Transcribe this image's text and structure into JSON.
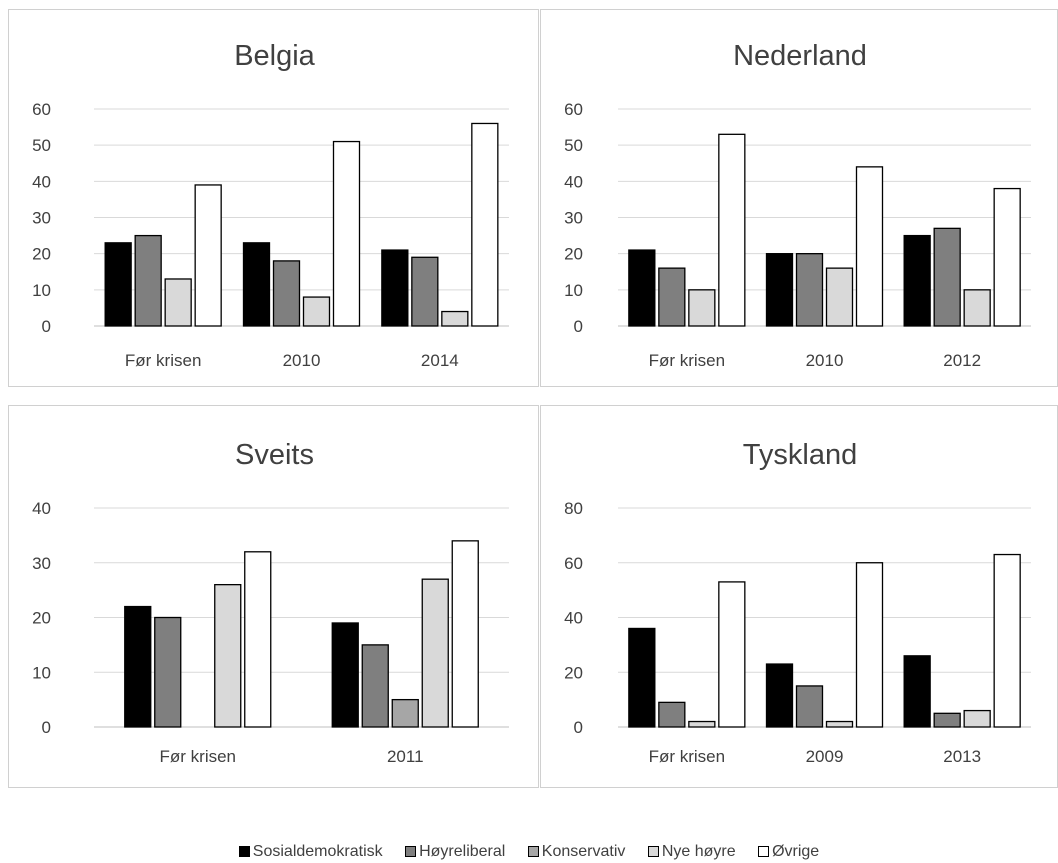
{
  "legend": [
    {
      "label": "Sosialdemokratisk",
      "color": "#000000"
    },
    {
      "label": "Høyreliberal",
      "color": "#7f7f7f"
    },
    {
      "label": "Konservativ",
      "color": "#a6a6a6"
    },
    {
      "label": "Nye høyre",
      "color": "#d9d9d9"
    },
    {
      "label": "Øvrige",
      "color": "#ffffff"
    }
  ],
  "chart_data": [
    {
      "type": "bar",
      "title": "Belgia",
      "categories": [
        "Før krisen",
        "2010",
        "2014"
      ],
      "yticks": [
        0,
        10,
        20,
        30,
        40,
        50,
        60
      ],
      "ylim": [
        0,
        60
      ],
      "grid": true,
      "series": [
        {
          "name": "Sosialdemokratisk",
          "values": [
            23,
            23,
            21
          ]
        },
        {
          "name": "Høyreliberal",
          "values": [
            25,
            18,
            19
          ]
        },
        {
          "name": "Nye høyre",
          "values": [
            13,
            8,
            4
          ]
        },
        {
          "name": "Øvrige",
          "values": [
            39,
            51,
            56
          ]
        }
      ]
    },
    {
      "type": "bar",
      "title": "Nederland",
      "categories": [
        "Før krisen",
        "2010",
        "2012"
      ],
      "yticks": [
        0,
        10,
        20,
        30,
        40,
        50,
        60
      ],
      "ylim": [
        0,
        60
      ],
      "grid": true,
      "series": [
        {
          "name": "Sosialdemokratisk",
          "values": [
            21,
            20,
            25
          ]
        },
        {
          "name": "Høyreliberal",
          "values": [
            16,
            20,
            27
          ]
        },
        {
          "name": "Nye høyre",
          "values": [
            10,
            16,
            10
          ]
        },
        {
          "name": "Øvrige",
          "values": [
            53,
            44,
            38
          ]
        }
      ]
    },
    {
      "type": "bar",
      "title": "Sveits",
      "categories": [
        "Før krisen",
        "2011"
      ],
      "yticks": [
        0,
        10,
        20,
        30,
        40
      ],
      "ylim": [
        0,
        40
      ],
      "grid": true,
      "series": [
        {
          "name": "Sosialdemokratisk",
          "values": [
            22,
            19
          ]
        },
        {
          "name": "Høyreliberal",
          "values": [
            20,
            15
          ]
        },
        {
          "name": "Konservativ",
          "values": [
            0,
            5
          ]
        },
        {
          "name": "Nye høyre",
          "values": [
            26,
            27
          ]
        },
        {
          "name": "Øvrige",
          "values": [
            32,
            34
          ]
        }
      ]
    },
    {
      "type": "bar",
      "title": "Tyskland",
      "categories": [
        "Før krisen",
        "2009",
        "2013"
      ],
      "yticks": [
        0,
        20,
        40,
        60,
        80
      ],
      "ylim": [
        0,
        80
      ],
      "grid": true,
      "series": [
        {
          "name": "Sosialdemokratisk",
          "values": [
            36,
            23,
            26
          ]
        },
        {
          "name": "Høyreliberal",
          "values": [
            9,
            15,
            5
          ]
        },
        {
          "name": "Nye høyre",
          "values": [
            2,
            2,
            6
          ]
        },
        {
          "name": "Øvrige",
          "values": [
            53,
            60,
            63
          ]
        }
      ]
    }
  ]
}
